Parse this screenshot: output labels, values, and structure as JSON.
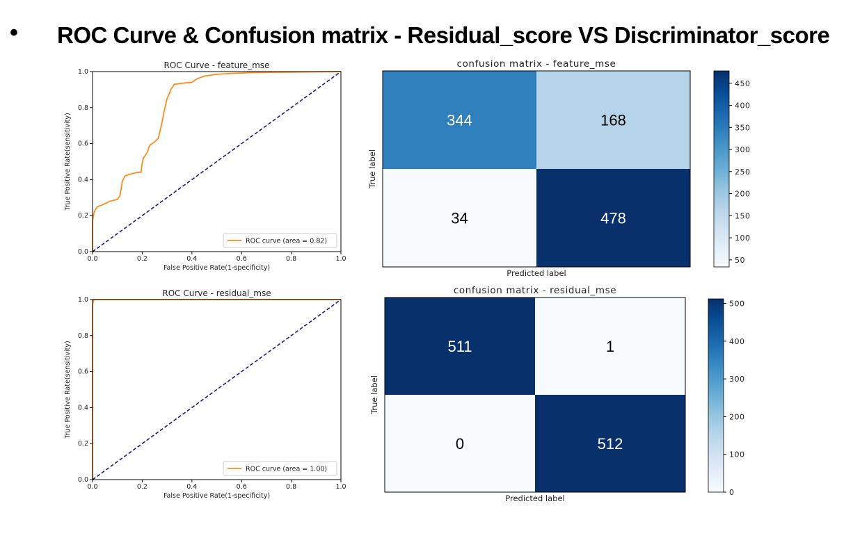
{
  "slide": {
    "bullet": "•",
    "title": "ROC Curve & Confusion matrix -  Residual_score VS Discriminator_score"
  },
  "chart_data": [
    {
      "type": "line",
      "title": "ROC Curve - feature_mse",
      "xlabel": "False Positive Rate(1-specificity)",
      "ylabel": "True Positive Rate(sensitivity)",
      "xlim": [
        0,
        1
      ],
      "ylim": [
        0,
        1
      ],
      "xticks": [
        "0.0",
        "0.2",
        "0.4",
        "0.6",
        "0.8",
        "1.0"
      ],
      "yticks": [
        "0.0",
        "0.2",
        "0.4",
        "0.6",
        "0.8",
        "1.0"
      ],
      "grid": false,
      "legend_position": "lower-right",
      "series": [
        {
          "name": "ROC curve (area = 0.82)",
          "color": "#ff8c1a",
          "style": "solid",
          "points": [
            [
              0,
              0
            ],
            [
              0,
              0.17
            ],
            [
              0.005,
              0.21
            ],
            [
              0.01,
              0.23
            ],
            [
              0.02,
              0.25
            ],
            [
              0.04,
              0.26
            ],
            [
              0.07,
              0.28
            ],
            [
              0.1,
              0.29
            ],
            [
              0.11,
              0.31
            ],
            [
              0.115,
              0.35
            ],
            [
              0.12,
              0.39
            ],
            [
              0.13,
              0.42
            ],
            [
              0.15,
              0.43
            ],
            [
              0.18,
              0.44
            ],
            [
              0.195,
              0.44
            ],
            [
              0.2,
              0.49
            ],
            [
              0.205,
              0.52
            ],
            [
              0.22,
              0.55
            ],
            [
              0.23,
              0.59
            ],
            [
              0.25,
              0.61
            ],
            [
              0.265,
              0.63
            ],
            [
              0.27,
              0.66
            ],
            [
              0.28,
              0.72
            ],
            [
              0.29,
              0.79
            ],
            [
              0.3,
              0.85
            ],
            [
              0.31,
              0.88
            ],
            [
              0.315,
              0.9
            ],
            [
              0.33,
              0.93
            ],
            [
              0.36,
              0.935
            ],
            [
              0.4,
              0.94
            ],
            [
              0.42,
              0.96
            ],
            [
              0.45,
              0.975
            ],
            [
              0.5,
              0.985
            ],
            [
              0.56,
              0.99
            ],
            [
              0.65,
              0.995
            ],
            [
              0.8,
              0.997
            ],
            [
              1,
              1
            ]
          ]
        },
        {
          "name": "",
          "color": "#1a1a80",
          "style": "dashed",
          "points": [
            [
              0,
              0
            ],
            [
              1,
              1
            ]
          ]
        }
      ]
    },
    {
      "type": "heatmap",
      "title": "confusion matrix - feature_mse",
      "xlabel": "Predicted label",
      "ylabel": "True label",
      "values": [
        [
          344,
          168
        ],
        [
          34,
          478
        ]
      ],
      "colormap": "Blues",
      "vmin": 34,
      "vmax": 478,
      "colorbar_ticks": [
        "50",
        "100",
        "150",
        "200",
        "250",
        "300",
        "350",
        "400",
        "450"
      ]
    },
    {
      "type": "line",
      "title": "ROC Curve - residual_mse",
      "xlabel": "False Positive Rate(1-specificity)",
      "ylabel": "True Positive Rate(sensitivity)",
      "xlim": [
        0,
        1
      ],
      "ylim": [
        0,
        1
      ],
      "xticks": [
        "0.0",
        "0.2",
        "0.4",
        "0.6",
        "0.8",
        "1.0"
      ],
      "yticks": [
        "0.0",
        "0.2",
        "0.4",
        "0.6",
        "0.8",
        "1.0"
      ],
      "grid": false,
      "legend_position": "lower-right",
      "series": [
        {
          "name": "ROC curve (area = 1.00)",
          "color": "#ff8c1a",
          "style": "solid",
          "points": [
            [
              0,
              0
            ],
            [
              0,
              0.97
            ],
            [
              0.003,
              0.99
            ],
            [
              0.006,
              1.0
            ],
            [
              1,
              1
            ]
          ]
        },
        {
          "name": "",
          "color": "#1a1a80",
          "style": "dashed",
          "points": [
            [
              0,
              0
            ],
            [
              1,
              1
            ]
          ]
        }
      ]
    },
    {
      "type": "heatmap",
      "title": "confusion matrix - residual_mse",
      "xlabel": "Predicted label",
      "ylabel": "True label",
      "values": [
        [
          511,
          1
        ],
        [
          0,
          512
        ]
      ],
      "colormap": "Blues",
      "vmin": 0,
      "vmax": 512,
      "colorbar_ticks": [
        "0",
        "100",
        "200",
        "300",
        "400",
        "500"
      ]
    }
  ]
}
